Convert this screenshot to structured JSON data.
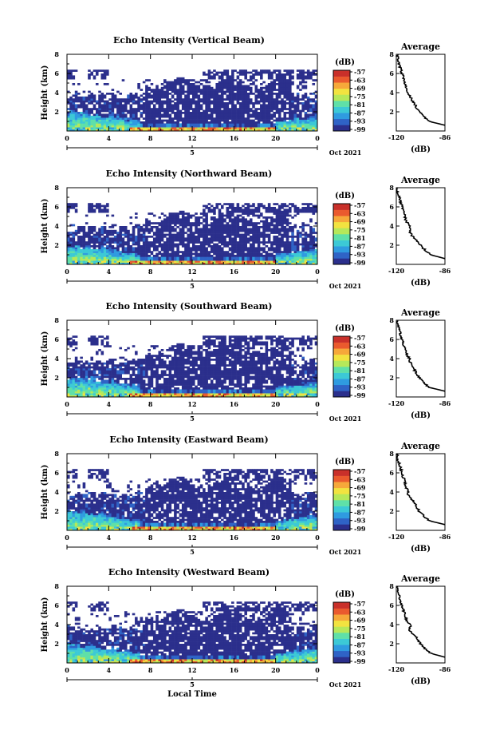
{
  "figure": {
    "xlabel": "Local Time",
    "date_label": "Oct 2021",
    "day_label": "5",
    "colorbar_unit": "(dB)",
    "colorbar_ticks": [
      "-57",
      "-63",
      "-69",
      "-75",
      "-81",
      "-87",
      "-93",
      "-99"
    ],
    "colormap": [
      "#2b2f8c",
      "#2f63c6",
      "#2f9be0",
      "#3cc9d6",
      "#5fe0a8",
      "#b6e85a",
      "#f2e340",
      "#f6a83a",
      "#ea5a2e",
      "#c9302a"
    ],
    "no_data_color": "#ffffff",
    "avg_title": "Average",
    "avg_xlabel": "(dB)"
  },
  "chart_data": [
    {
      "type": "heatmap",
      "title": "Echo Intensity (Vertical Beam)",
      "xlabel": "",
      "ylabel": "Height (km)",
      "xlim": [
        0,
        24
      ],
      "ylim": [
        0,
        8
      ],
      "xticks": [
        "0",
        "4",
        "8",
        "12",
        "16",
        "20",
        "0"
      ],
      "yticks": [
        "2",
        "4",
        "6",
        "8"
      ],
      "value_range": [
        -99,
        -57
      ],
      "average_profile": {
        "title": "Average",
        "xlabel": "(dB)",
        "xlim": [
          -120,
          -86
        ],
        "xticks": [
          "-120",
          "-86"
        ],
        "yticks": [
          "2",
          "4",
          "6",
          "8"
        ],
        "height_km": [
          0.6,
          1.0,
          1.5,
          2.0,
          2.5,
          3.0,
          3.5,
          4.0,
          4.5,
          5.0,
          5.5,
          6.0,
          6.5,
          7.0,
          7.5,
          8.0
        ],
        "intensity_db": [
          -86,
          -97,
          -101,
          -104,
          -106,
          -108,
          -110,
          -112,
          -113,
          -114,
          -115,
          -116,
          -117,
          -118,
          -119,
          -119
        ]
      }
    },
    {
      "type": "heatmap",
      "title": "Echo Intensity (Northward Beam)",
      "xlabel": "",
      "ylabel": "Height (km)",
      "xlim": [
        0,
        24
      ],
      "ylim": [
        0,
        8
      ],
      "xticks": [
        "0",
        "4",
        "8",
        "12",
        "16",
        "20",
        "0"
      ],
      "yticks": [
        "2",
        "4",
        "6",
        "8"
      ],
      "value_range": [
        -99,
        -57
      ],
      "average_profile": {
        "title": "Average",
        "xlabel": "(dB)",
        "xlim": [
          -120,
          -86
        ],
        "xticks": [
          "-120",
          "-86"
        ],
        "yticks": [
          "2",
          "4",
          "6",
          "8"
        ],
        "height_km": [
          0.6,
          1.0,
          1.5,
          2.0,
          2.5,
          3.0,
          3.5,
          4.0,
          4.5,
          5.0,
          5.5,
          6.0,
          6.5,
          7.0,
          7.5,
          8.0
        ],
        "intensity_db": [
          -86,
          -96,
          -100,
          -103,
          -106,
          -109,
          -111,
          -110,
          -113,
          -114,
          -115,
          -116,
          -117,
          -118,
          -119,
          -119
        ]
      }
    },
    {
      "type": "heatmap",
      "title": "Echo Intensity (Southward Beam)",
      "xlabel": "",
      "ylabel": "Height (km)",
      "xlim": [
        0,
        24
      ],
      "ylim": [
        0,
        8
      ],
      "xticks": [
        "0",
        "4",
        "8",
        "12",
        "16",
        "20",
        "0"
      ],
      "yticks": [
        "2",
        "4",
        "6",
        "8"
      ],
      "value_range": [
        -99,
        -57
      ],
      "average_profile": {
        "title": "Average",
        "xlabel": "(dB)",
        "xlim": [
          -120,
          -86
        ],
        "xticks": [
          "-120",
          "-86"
        ],
        "yticks": [
          "2",
          "4",
          "6",
          "8"
        ],
        "height_km": [
          0.6,
          1.0,
          1.5,
          2.0,
          2.5,
          3.0,
          3.5,
          4.0,
          4.5,
          5.0,
          5.5,
          6.0,
          6.5,
          7.0,
          7.5,
          8.0
        ],
        "intensity_db": [
          -86,
          -97,
          -101,
          -104,
          -106,
          -108,
          -110,
          -111,
          -113,
          -114,
          -115,
          -116,
          -117,
          -118,
          -119,
          -119
        ]
      }
    },
    {
      "type": "heatmap",
      "title": "Echo Intensity (Eastward Beam)",
      "xlabel": "",
      "ylabel": "Height (km)",
      "xlim": [
        0,
        24
      ],
      "ylim": [
        0,
        8
      ],
      "xticks": [
        "0",
        "4",
        "8",
        "12",
        "16",
        "20",
        "0"
      ],
      "yticks": [
        "2",
        "4",
        "6",
        "8"
      ],
      "value_range": [
        -99,
        -57
      ],
      "average_profile": {
        "title": "Average",
        "xlabel": "(dB)",
        "xlim": [
          -120,
          -86
        ],
        "xticks": [
          "-120",
          "-86"
        ],
        "yticks": [
          "2",
          "4",
          "6",
          "8"
        ],
        "height_km": [
          0.6,
          1.0,
          1.5,
          2.0,
          2.5,
          3.0,
          3.5,
          4.0,
          4.5,
          5.0,
          5.5,
          6.0,
          6.5,
          7.0,
          7.5,
          8.0
        ],
        "intensity_db": [
          -86,
          -97,
          -101,
          -104,
          -106,
          -108,
          -111,
          -112,
          -113,
          -114,
          -115,
          -116,
          -117,
          -118,
          -119,
          -119
        ]
      }
    },
    {
      "type": "heatmap",
      "title": "Echo Intensity (Westward Beam)",
      "xlabel": "",
      "ylabel": "Height (km)",
      "xlim": [
        0,
        24
      ],
      "ylim": [
        0,
        8
      ],
      "xticks": [
        "0",
        "4",
        "8",
        "12",
        "16",
        "20",
        "0"
      ],
      "yticks": [
        "2",
        "4",
        "6",
        "8"
      ],
      "value_range": [
        -99,
        -57
      ],
      "average_profile": {
        "title": "Average",
        "xlabel": "(dB)",
        "xlim": [
          -120,
          -86
        ],
        "xticks": [
          "-120",
          "-86"
        ],
        "yticks": [
          "2",
          "4",
          "6",
          "8"
        ],
        "height_km": [
          0.6,
          1.0,
          1.5,
          2.0,
          2.5,
          3.0,
          3.5,
          4.0,
          4.5,
          5.0,
          5.5,
          6.0,
          6.5,
          7.0,
          7.5,
          8.0
        ],
        "intensity_db": [
          -86,
          -96,
          -100,
          -103,
          -105,
          -108,
          -111,
          -110,
          -113,
          -114,
          -115,
          -116,
          -117,
          -118,
          -119,
          -119
        ]
      }
    }
  ]
}
